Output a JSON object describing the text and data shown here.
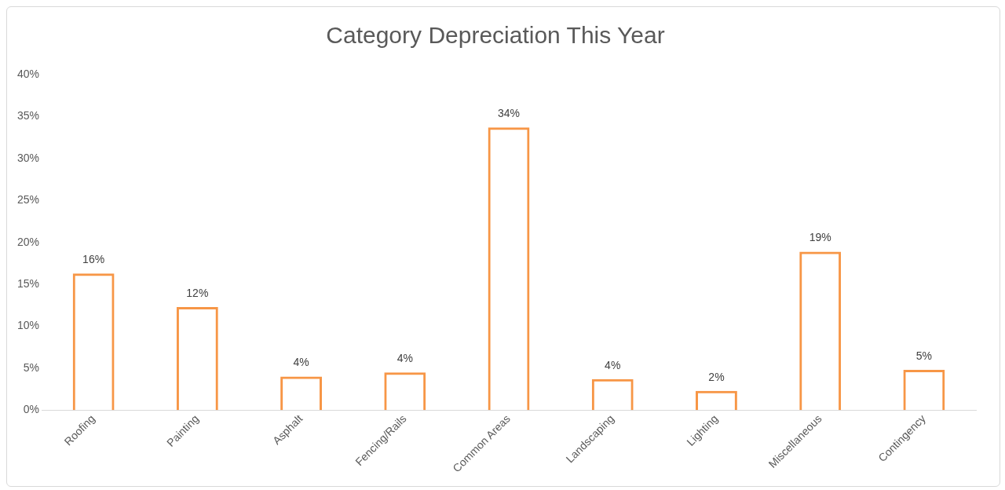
{
  "chart_data": {
    "type": "bar",
    "title": "Category Depreciation This Year",
    "categories": [
      "Roofing",
      "Painting",
      "Asphalt",
      "Fencing/Rails",
      "Common Areas",
      "Landscaping",
      "Lighting",
      "Miscellaneous",
      "Contingency"
    ],
    "values": [
      16.3,
      12.3,
      4.0,
      4.5,
      33.7,
      3.7,
      2.3,
      18.9,
      4.8
    ],
    "value_labels": [
      "16%",
      "12%",
      "4%",
      "4%",
      "34%",
      "4%",
      "2%",
      "19%",
      "5%"
    ],
    "color": "#f79646",
    "ylim": [
      0,
      40
    ],
    "yticks": [
      {
        "value": 0,
        "label": "0%"
      },
      {
        "value": 5,
        "label": "5%"
      },
      {
        "value": 10,
        "label": "10%"
      },
      {
        "value": 15,
        "label": "15%"
      },
      {
        "value": 20,
        "label": "20%"
      },
      {
        "value": 25,
        "label": "25%"
      },
      {
        "value": 30,
        "label": "30%"
      },
      {
        "value": 35,
        "label": "35%"
      },
      {
        "value": 40,
        "label": "40%"
      }
    ],
    "grid": false,
    "legend": false
  }
}
